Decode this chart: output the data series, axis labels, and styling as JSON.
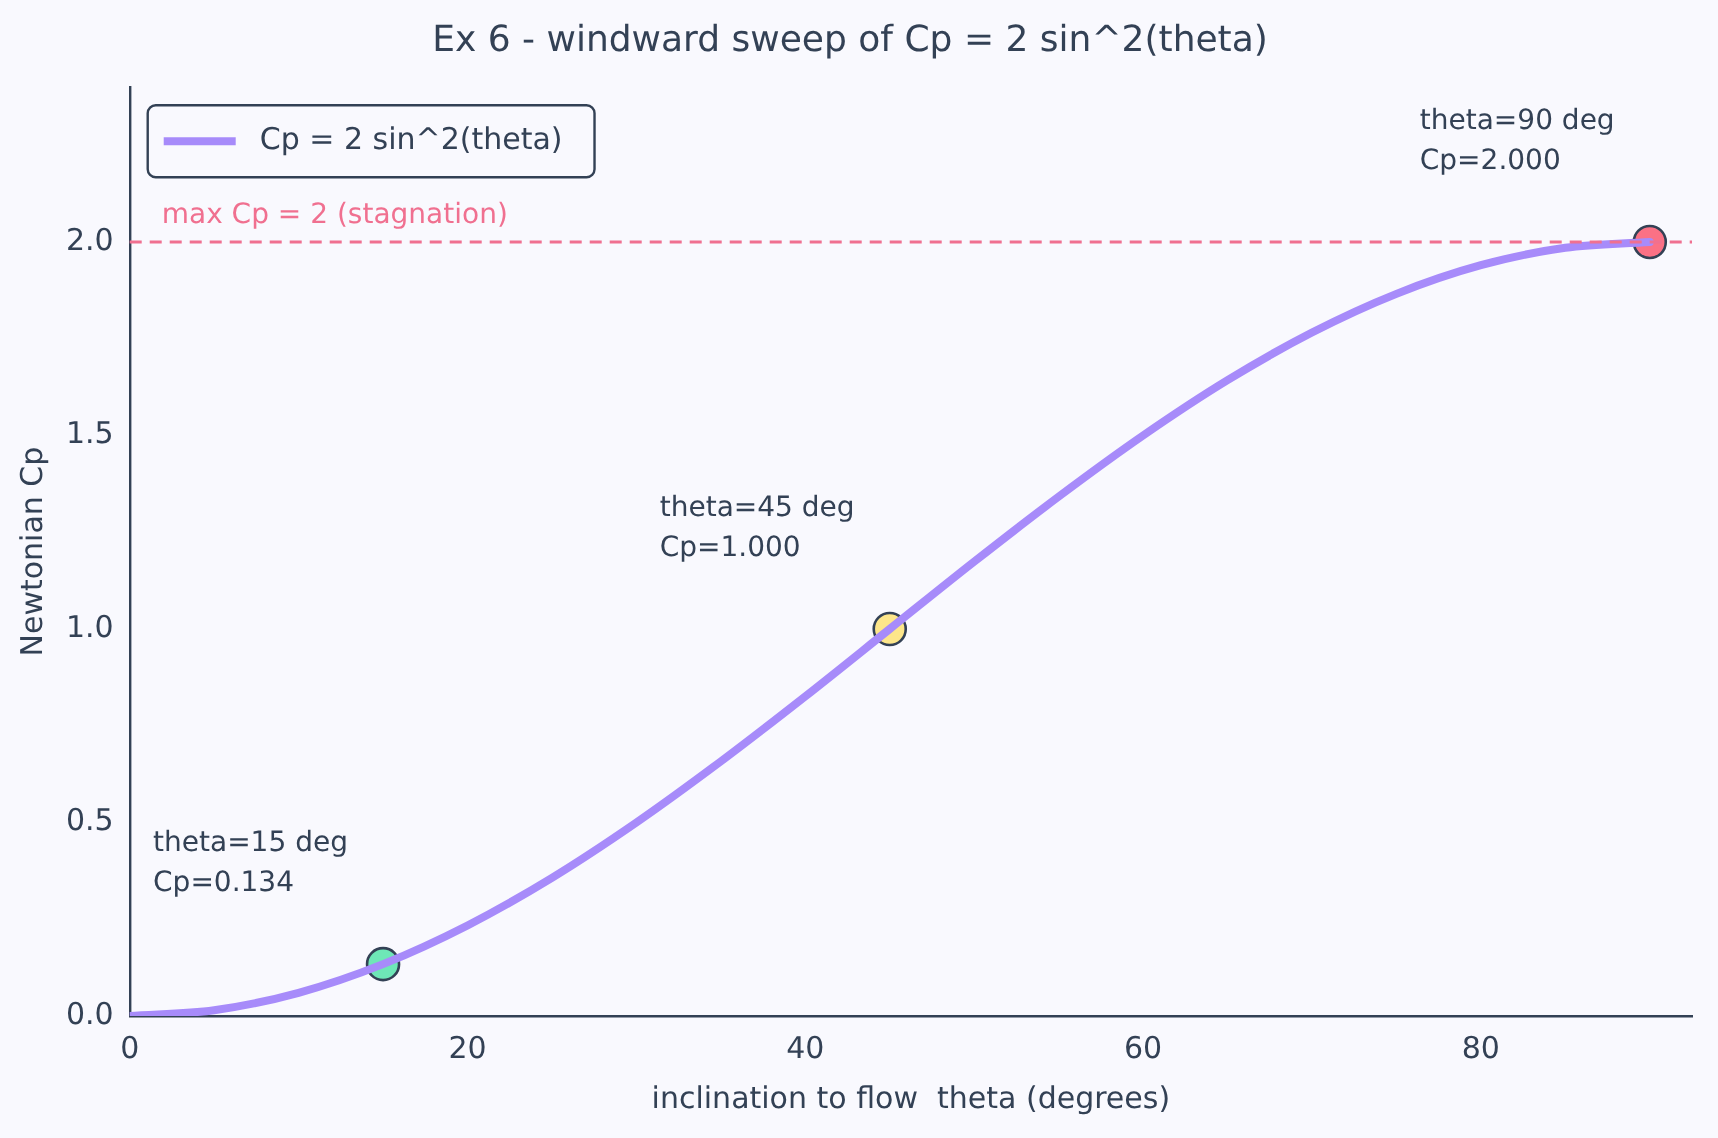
{
  "chart_data": {
    "type": "line",
    "title": "Ex 6 - windward sweep of Cp = 2 sin^2(theta)",
    "xlabel": "inclination to flow  theta (degrees)",
    "ylabel": "Newtonian Cp",
    "x": [
      0,
      5,
      10,
      15,
      20,
      25,
      30,
      35,
      40,
      45,
      50,
      55,
      60,
      65,
      70,
      75,
      80,
      85,
      90
    ],
    "series": [
      {
        "name": "Cp = 2 sin^2(theta)",
        "color": "#a78bfa",
        "marker": "none",
        "values": [
          0,
          0.015,
          0.06,
          0.134,
          0.234,
          0.357,
          0.5,
          0.658,
          0.826,
          1.0,
          1.174,
          1.342,
          1.5,
          1.643,
          1.766,
          1.866,
          1.94,
          1.985,
          2.0
        ]
      },
      {
        "type": "scatter",
        "marker": "circle",
        "x": [
          15,
          45,
          90
        ],
        "values": [
          0.134,
          1.0,
          2.0
        ],
        "colors": [
          "#6ee7b7",
          "#fde68a",
          "#fb7185"
        ]
      }
    ],
    "annotations": [
      {
        "text": "theta=15 deg\nCp=0.134",
        "x": 15,
        "y": 0.134
      },
      {
        "text": "theta=45 deg\nCp=1.000",
        "x": 45,
        "y": 1.0
      },
      {
        "text": "theta=90 deg\nCp=2.000",
        "x": 90,
        "y": 2.0
      }
    ],
    "ref_lines": [
      {
        "axis": "y",
        "value": 2,
        "label": "max Cp = 2 (stagnation)",
        "color": "#f07090",
        "line_style": "dashed"
      }
    ],
    "xlim": [
      0,
      92.5
    ],
    "ylim": [
      0,
      2.4
    ],
    "xticks": [
      0,
      20,
      40,
      60,
      80
    ],
    "yticks": [
      {
        "value": 0,
        "label": "0.0"
      },
      {
        "value": 0.5,
        "label": "0.5"
      },
      {
        "value": 1,
        "label": "1.0"
      },
      {
        "value": 1.5,
        "label": "1.5"
      },
      {
        "value": 2,
        "label": "2.0"
      }
    ],
    "grid": false,
    "legend": "top left",
    "line_style": "solid"
  }
}
